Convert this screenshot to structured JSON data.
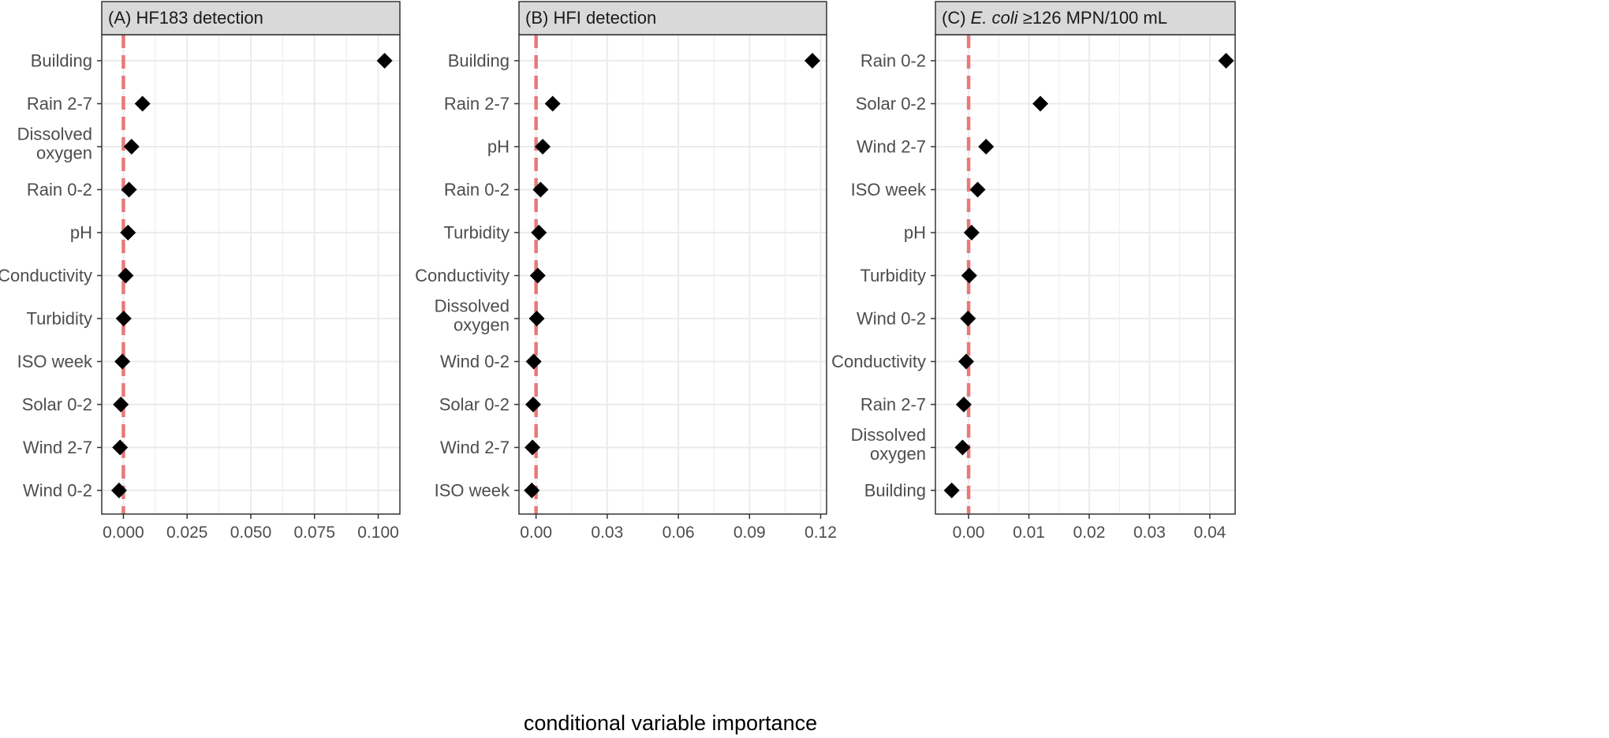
{
  "style": {
    "reference_line_color": "#e8797a",
    "point_color": "#000000",
    "strip_fill": "#d9d9d9",
    "grid_color": "#ebebeb",
    "panel_border": "#333333"
  },
  "chart_data": {
    "xlabel": "conditional variable importance",
    "reference_line": 0,
    "point_shape": "diamond",
    "panels": [
      {
        "title_prefix": "(A) HF183 detection",
        "title_italic": "",
        "title_suffix": "",
        "type": "scatter",
        "grid": true,
        "xlim": [
          -0.0085,
          0.1085
        ],
        "xticks": [
          0.0,
          0.025,
          0.05,
          0.075,
          0.1
        ],
        "xtick_labels": [
          "0.000",
          "0.025",
          "0.050",
          "0.075",
          "0.100"
        ],
        "categories": [
          "Building",
          "Rain 2-7",
          "Dissolved\noxygen",
          "Rain 0-2",
          "pH",
          "Conductivity",
          "Turbidity",
          "ISO week",
          "Solar 0-2",
          "Wind 2-7",
          "Wind 0-2"
        ],
        "values": [
          0.1025,
          0.0075,
          0.0032,
          0.0022,
          0.0018,
          0.0009,
          0.0001,
          -0.0004,
          -0.001,
          -0.0013,
          -0.0017
        ]
      },
      {
        "title_prefix": "(B) HFI detection",
        "title_italic": "",
        "title_suffix": "",
        "type": "scatter",
        "grid": true,
        "xlim": [
          -0.0072,
          0.1225
        ],
        "xticks": [
          0.0,
          0.03,
          0.06,
          0.09,
          0.12
        ],
        "xtick_labels": [
          "0.00",
          "0.03",
          "0.06",
          "0.09",
          "0.12"
        ],
        "categories": [
          "Building",
          "Rain 2-7",
          "pH",
          "Rain 0-2",
          "Turbidity",
          "Conductivity",
          "Dissolved\noxygen",
          "Wind 0-2",
          "Solar 0-2",
          "Wind 2-7",
          "ISO week"
        ],
        "values": [
          0.1165,
          0.007,
          0.0028,
          0.0019,
          0.0012,
          0.0007,
          0.0003,
          -0.001,
          -0.0012,
          -0.0015,
          -0.0018
        ]
      },
      {
        "title_prefix": "(C) ",
        "title_italic": "E. coli",
        "title_suffix": " ≥126 MPN/100 mL",
        "type": "scatter",
        "grid": true,
        "xlim": [
          -0.0055,
          0.0442
        ],
        "xticks": [
          0.0,
          0.01,
          0.02,
          0.03,
          0.04
        ],
        "xtick_labels": [
          "0.00",
          "0.01",
          "0.02",
          "0.03",
          "0.04"
        ],
        "categories": [
          "Rain 0-2",
          "Solar 0-2",
          "Wind 2-7",
          "ISO week",
          "pH",
          "Turbidity",
          "Wind 0-2",
          "Conductivity",
          "Rain 2-7",
          "Dissolved\noxygen",
          "Building"
        ],
        "values": [
          0.0427,
          0.0119,
          0.0029,
          0.0015,
          0.0005,
          0.0001,
          -0.0001,
          -0.0004,
          -0.0008,
          -0.001,
          -0.0028
        ]
      }
    ]
  }
}
